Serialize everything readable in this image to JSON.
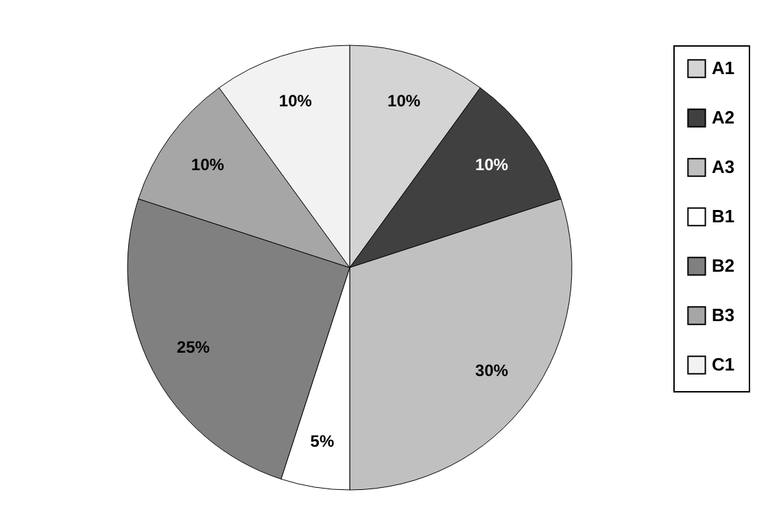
{
  "chart_data": {
    "type": "pie",
    "categories": [
      "A1",
      "A2",
      "A3",
      "B1",
      "B2",
      "B3",
      "C1"
    ],
    "values": [
      10,
      10,
      30,
      5,
      25,
      10,
      10
    ],
    "colors": [
      "#d4d4d4",
      "#404040",
      "#c0c0c0",
      "#ffffff",
      "#808080",
      "#a6a6a6",
      "#f2f2f2"
    ],
    "value_labels": [
      "10%",
      "10%",
      "30%",
      "5%",
      "25%",
      "10%",
      "10%"
    ],
    "legend": "right"
  }
}
